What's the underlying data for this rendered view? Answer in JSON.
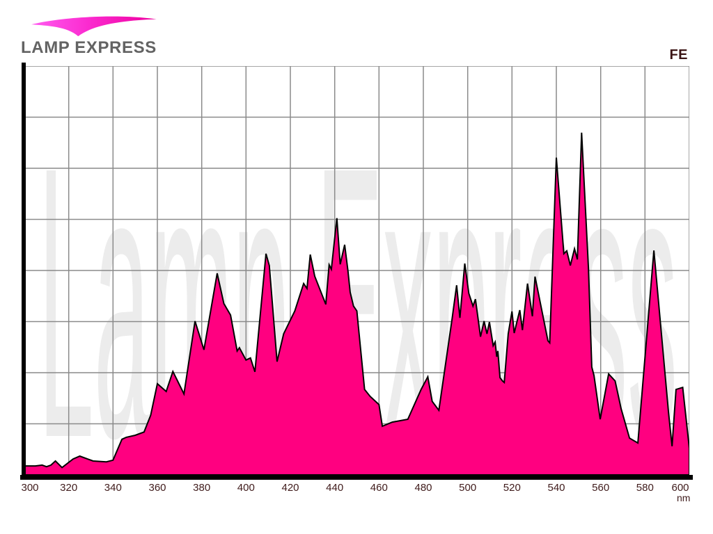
{
  "header": {
    "brand": "LAMP EXPRESS",
    "series_label": "FE"
  },
  "chart_data": {
    "type": "area",
    "title": "FE lamp spectral distribution",
    "watermark": "Lamp Express",
    "x_unit": "nm",
    "xlabel": "",
    "ylabel": "",
    "x_range": [
      300,
      600
    ],
    "y_range": [
      0,
      100
    ],
    "x_ticks": [
      "300",
      "320",
      "340",
      "360",
      "380",
      "400",
      "420",
      "440",
      "460",
      "480",
      "500",
      "520",
      "540",
      "560",
      "580",
      "600"
    ],
    "x_divisions": 15,
    "y_divisions": 8,
    "grid": "on",
    "legend": "none",
    "colors": {
      "fill": "#FF0080",
      "outline": "#000000",
      "grid": "#8a8a8a",
      "axis": "#000000",
      "tick_text": "#3f1b1b",
      "series_label_text": "#3b1414",
      "brand_text": "#636363",
      "watermark": "#ececec",
      "swoosh_left": "#ff5cf0",
      "swoosh_right": "#ee009e"
    },
    "points": [
      [
        300,
        2.2
      ],
      [
        305,
        2.2
      ],
      [
        308,
        2.4
      ],
      [
        310,
        2.0
      ],
      [
        312,
        2.4
      ],
      [
        314,
        3.4
      ],
      [
        317,
        1.8
      ],
      [
        322,
        3.9
      ],
      [
        325,
        4.6
      ],
      [
        331,
        3.4
      ],
      [
        337,
        3.2
      ],
      [
        340,
        3.6
      ],
      [
        344,
        8.7
      ],
      [
        346,
        9.2
      ],
      [
        350,
        9.7
      ],
      [
        354,
        10.5
      ],
      [
        357,
        14.6
      ],
      [
        360,
        22.3
      ],
      [
        364,
        20.4
      ],
      [
        367,
        25.3
      ],
      [
        372,
        19.8
      ],
      [
        377,
        37.6
      ],
      [
        381,
        30.6
      ],
      [
        387,
        49.3
      ],
      [
        390,
        41.9
      ],
      [
        393,
        39.1
      ],
      [
        396,
        30.3
      ],
      [
        397,
        31.1
      ],
      [
        400,
        28.1
      ],
      [
        402,
        28.6
      ],
      [
        404,
        25.2
      ],
      [
        409,
        54.1
      ],
      [
        410.5,
        51.2
      ],
      [
        414,
        27.7
      ],
      [
        417,
        34.5
      ],
      [
        422,
        40.1
      ],
      [
        426,
        46.8
      ],
      [
        427.5,
        45.6
      ],
      [
        429,
        53.9
      ],
      [
        431,
        48.6
      ],
      [
        436,
        41.7
      ],
      [
        437.5,
        51.4
      ],
      [
        438.5,
        50.3
      ],
      [
        441,
        62.8
      ],
      [
        442.5,
        51.5
      ],
      [
        444.5,
        56.3
      ],
      [
        446,
        49.8
      ],
      [
        447,
        44.7
      ],
      [
        448.5,
        41.3
      ],
      [
        450,
        40.1
      ],
      [
        453.5,
        20.9
      ],
      [
        456,
        19.2
      ],
      [
        460,
        17.2
      ],
      [
        461.5,
        11.9
      ],
      [
        466,
        12.9
      ],
      [
        473,
        13.6
      ],
      [
        479,
        20.9
      ],
      [
        482,
        24.0
      ],
      [
        484,
        18.0
      ],
      [
        487,
        15.8
      ],
      [
        493,
        38.3
      ],
      [
        495,
        46.4
      ],
      [
        496.5,
        38.4
      ],
      [
        498.7,
        51.7
      ],
      [
        500.5,
        44.4
      ],
      [
        502.4,
        41.3
      ],
      [
        503.5,
        43.0
      ],
      [
        505.8,
        33.8
      ],
      [
        507.4,
        37.6
      ],
      [
        508.7,
        34.5
      ],
      [
        509.8,
        37.4
      ],
      [
        511.5,
        31.6
      ],
      [
        512.4,
        32.5
      ],
      [
        513.1,
        28.9
      ],
      [
        513.6,
        30.3
      ],
      [
        514.6,
        23.8
      ],
      [
        515.7,
        23.0
      ],
      [
        516.5,
        22.6
      ],
      [
        518.3,
        34.5
      ],
      [
        520,
        40.0
      ],
      [
        521,
        34.7
      ],
      [
        523.5,
        40.3
      ],
      [
        524.7,
        35.4
      ],
      [
        527,
        46.8
      ],
      [
        529.2,
        38.8
      ],
      [
        530.4,
        48.5
      ],
      [
        536.2,
        32.8
      ],
      [
        537,
        32.3
      ],
      [
        540,
        77.6
      ],
      [
        543.4,
        54.1
      ],
      [
        544.7,
        54.8
      ],
      [
        546.3,
        51.2
      ],
      [
        548.2,
        55.3
      ],
      [
        549.5,
        52.7
      ],
      [
        551.4,
        83.7
      ],
      [
        554.5,
        50.3
      ],
      [
        556,
        26.4
      ],
      [
        557,
        24.3
      ],
      [
        559.8,
        13.6
      ],
      [
        563.6,
        24.7
      ],
      [
        566.5,
        23.0
      ],
      [
        569.2,
        16.2
      ],
      [
        573,
        9.0
      ],
      [
        576.8,
        7.8
      ],
      [
        584,
        54.9
      ],
      [
        590.6,
        15.3
      ],
      [
        592.2,
        7.0
      ],
      [
        594,
        20.9
      ],
      [
        597,
        21.4
      ],
      [
        600,
        6.5
      ]
    ]
  }
}
